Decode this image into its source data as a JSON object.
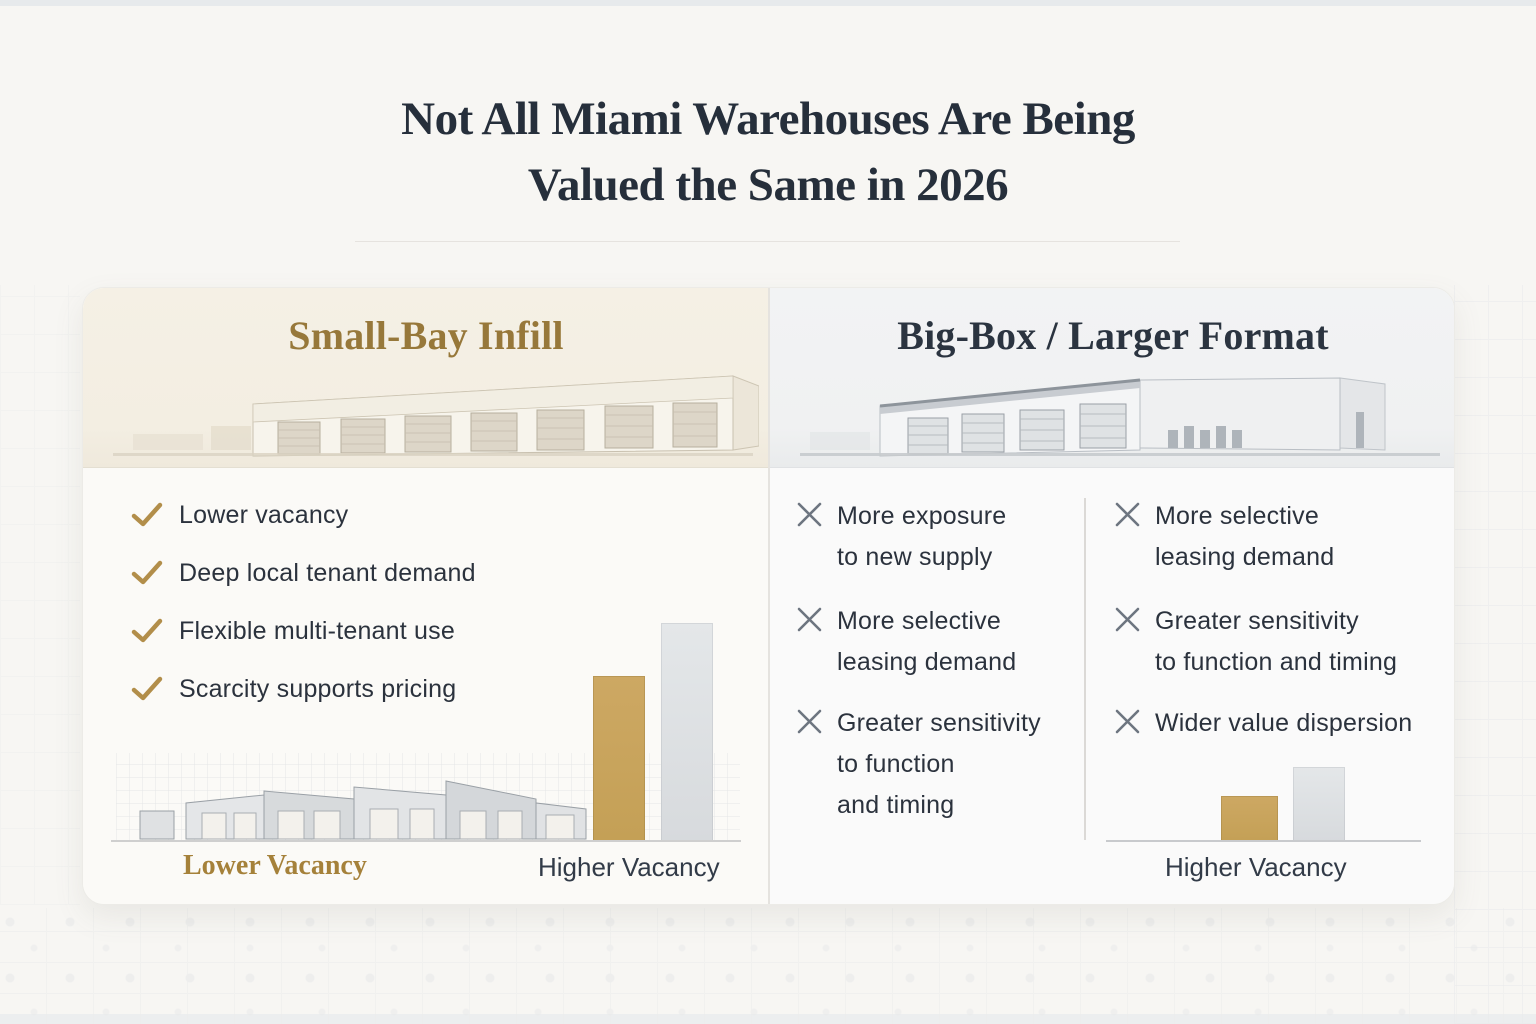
{
  "title": {
    "line1": "Not All Miami Warehouses Are Being",
    "line2": "Valued the Same in 2026"
  },
  "left_panel": {
    "header": "Small-Bay Infill",
    "checklist": [
      "Lower vacancy",
      "Deep local tenant demand",
      "Flexible multi-tenant use",
      "Scarcity supports pricing"
    ],
    "lower_label": "Lower Vacancy",
    "higher_label": "Higher Vacancy"
  },
  "right_panel": {
    "header": "Big-Box / Larger Format",
    "col1": [
      [
        "More exposure",
        "to new supply"
      ],
      [
        "More selective",
        "leasing demand"
      ],
      [
        "Greater sensitivity",
        "to function",
        "and timing"
      ]
    ],
    "col2": [
      [
        "More selective",
        "leasing demand"
      ],
      [
        "Greater sensitivity",
        "to function and timing"
      ],
      [
        "Wider value dispersion"
      ]
    ],
    "higher_label": "Higher Vacancy"
  },
  "icons": {
    "check": "check-icon",
    "cross": "x-icon"
  },
  "colors": {
    "gold_accent": "#b28e4a",
    "gold_bar": "#c6a25a",
    "gray_bar": "#dcdfe2",
    "navy_text": "#2b323d",
    "gold_header": "#97783a",
    "cream_panel": "#f4efe4",
    "gray_panel": "#f1f2f3"
  },
  "chart_data": [
    {
      "type": "bar",
      "panel": "Small-Bay Infill",
      "categories": [
        "Lower Vacancy",
        "Higher Vacancy"
      ],
      "values": [
        165,
        218
      ],
      "note": "qualitative bars, heights in px, no numeric axis shown",
      "colors": [
        "#c6a25a",
        "#dcdfe2"
      ]
    },
    {
      "type": "bar",
      "panel": "Big-Box / Larger Format",
      "categories": [
        "Higher Vacancy",
        "Higher Vacancy"
      ],
      "values": [
        45,
        74
      ],
      "note": "qualitative bars, heights in px, single shared label, no numeric axis shown",
      "colors": [
        "#c6a25a",
        "#dcdfe2"
      ]
    }
  ]
}
